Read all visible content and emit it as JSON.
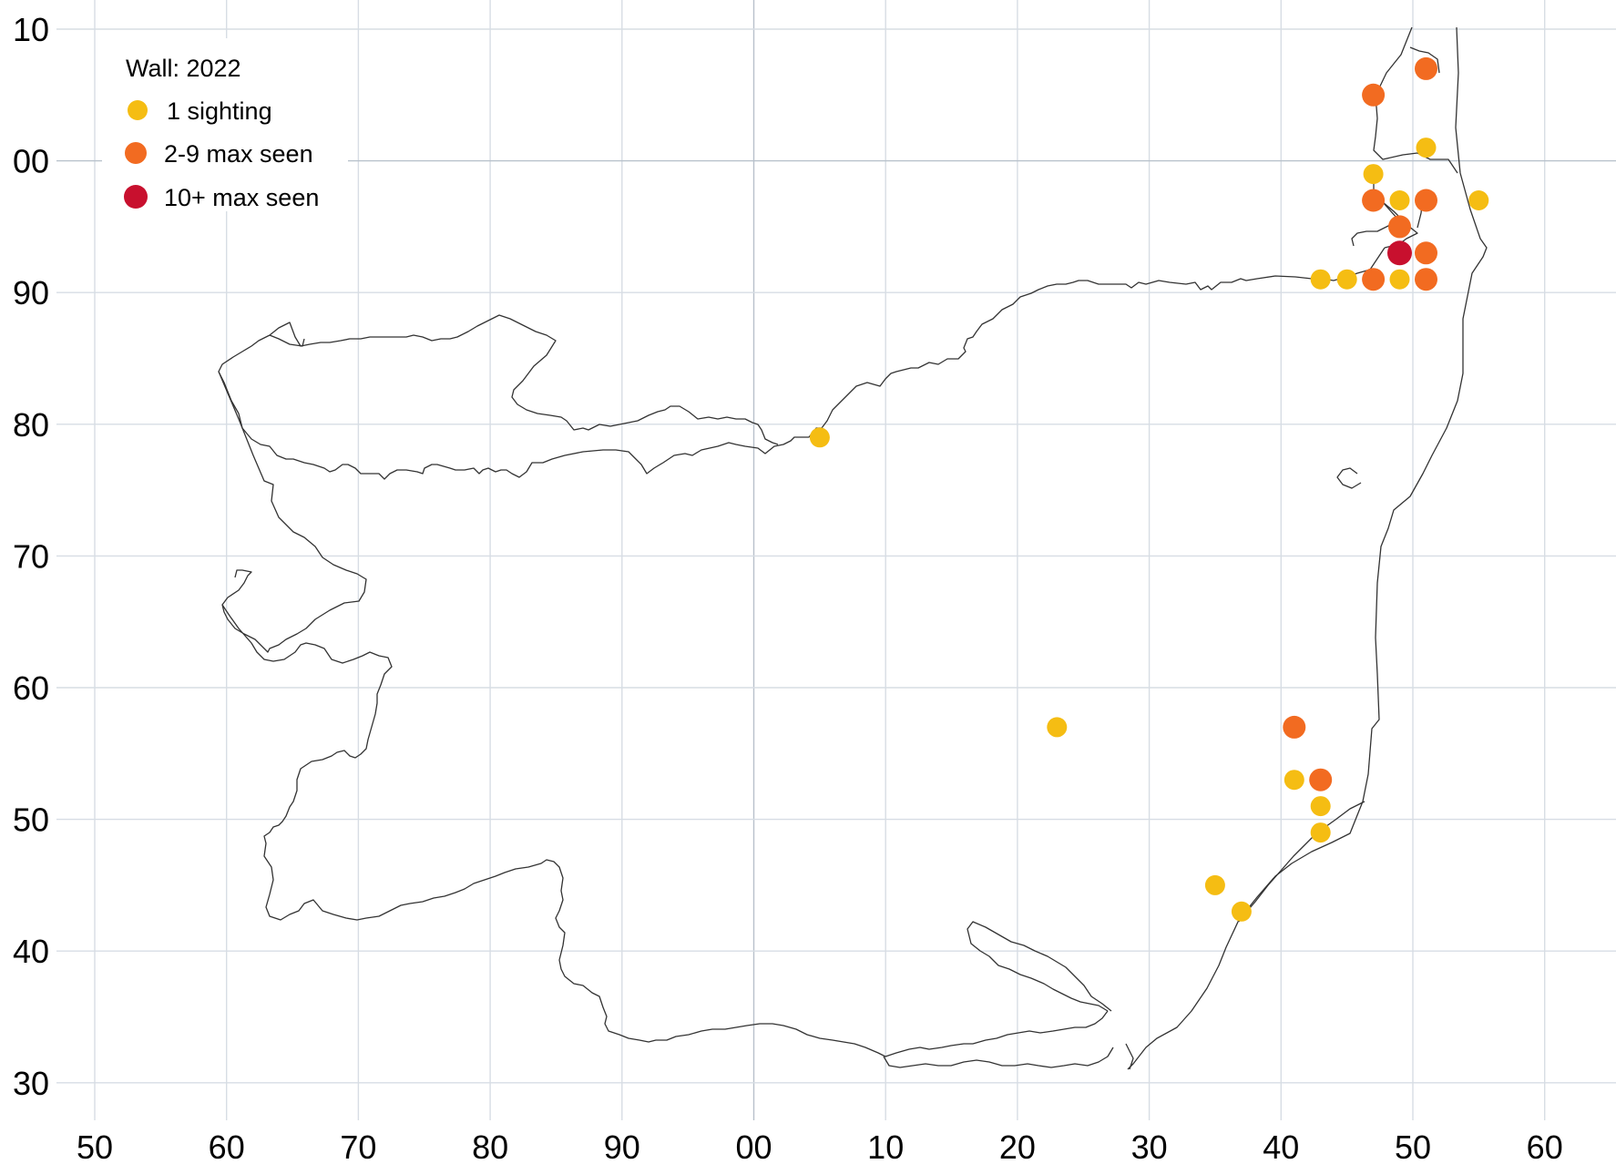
{
  "map": {
    "x_ticks": [
      "50",
      "60",
      "70",
      "80",
      "90",
      "00",
      "10",
      "20",
      "30",
      "40",
      "50",
      "60"
    ],
    "y_ticks": [
      "10",
      "00",
      "90",
      "80",
      "70",
      "60",
      "50",
      "40",
      "30"
    ],
    "legend": {
      "title": "Wall:  2022",
      "items": [
        {
          "label": "1 sighting",
          "color": "#f5bd13"
        },
        {
          "label": "2-9 max seen",
          "color": "#f26b21"
        },
        {
          "label": "10+ max seen",
          "color": "#c8102e"
        }
      ]
    },
    "colors": {
      "single": "#f5bd13",
      "multiple": "#f26b21",
      "many": "#c8102e",
      "outline": "#333333",
      "grid": "#d7dde4"
    },
    "sightings": [
      {
        "e": 51,
        "n": 107,
        "cat": "multiple"
      },
      {
        "e": 47,
        "n": 105,
        "cat": "multiple"
      },
      {
        "e": 51,
        "n": 101,
        "cat": "single"
      },
      {
        "e": 47,
        "n": 99,
        "cat": "single"
      },
      {
        "e": 47,
        "n": 97,
        "cat": "multiple"
      },
      {
        "e": 49,
        "n": 97,
        "cat": "single"
      },
      {
        "e": 51,
        "n": 97,
        "cat": "multiple"
      },
      {
        "e": 55,
        "n": 97,
        "cat": "single"
      },
      {
        "e": 49,
        "n": 95,
        "cat": "multiple"
      },
      {
        "e": 49,
        "n": 93,
        "cat": "many"
      },
      {
        "e": 51,
        "n": 93,
        "cat": "multiple"
      },
      {
        "e": 43,
        "n": 91,
        "cat": "single"
      },
      {
        "e": 45,
        "n": 91,
        "cat": "single"
      },
      {
        "e": 47,
        "n": 91,
        "cat": "multiple"
      },
      {
        "e": 49,
        "n": 91,
        "cat": "single"
      },
      {
        "e": 51,
        "n": 91,
        "cat": "multiple"
      },
      {
        "e": 5,
        "n": 79,
        "cat": "single"
      },
      {
        "e": 23,
        "n": 57,
        "cat": "single"
      },
      {
        "e": 41,
        "n": 57,
        "cat": "multiple"
      },
      {
        "e": 41,
        "n": 53,
        "cat": "single"
      },
      {
        "e": 43,
        "n": 53,
        "cat": "multiple"
      },
      {
        "e": 43,
        "n": 51,
        "cat": "single"
      },
      {
        "e": 43,
        "n": 49,
        "cat": "single"
      },
      {
        "e": 35,
        "n": 45,
        "cat": "single"
      },
      {
        "e": 37,
        "n": 43,
        "cat": "single"
      }
    ]
  }
}
